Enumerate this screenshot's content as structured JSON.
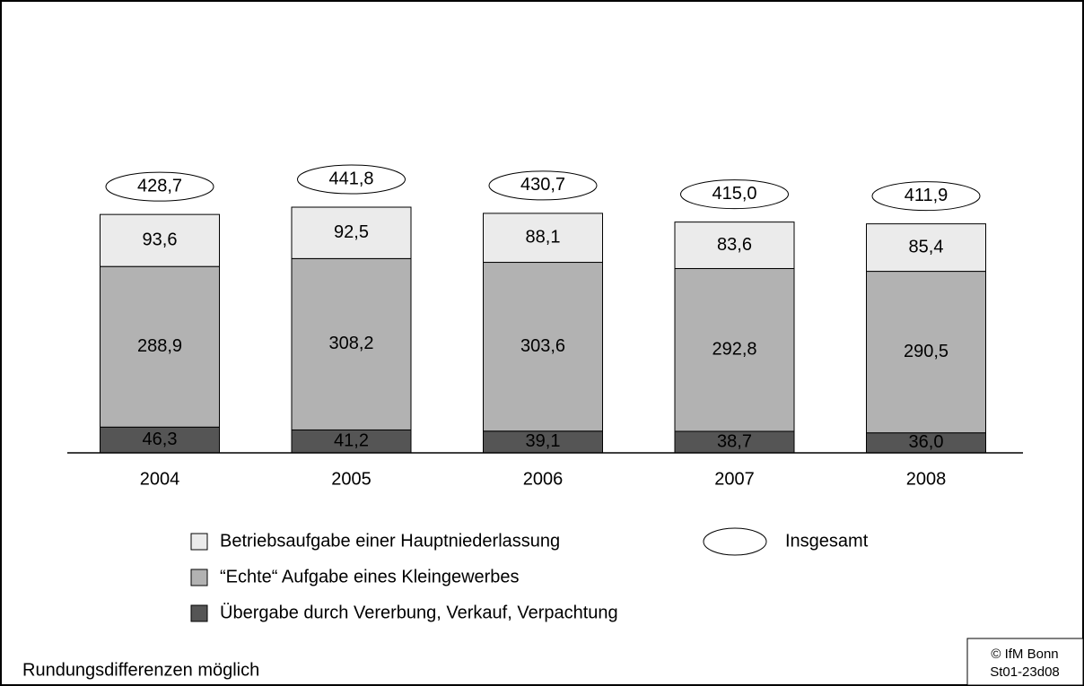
{
  "chart_data": {
    "type": "stacked_bar",
    "categories": [
      "2004",
      "2005",
      "2006",
      "2007",
      "2008"
    ],
    "series": [
      {
        "name": "Übergabe durch Vererbung, Verkauf, Verpachtung",
        "color": "#555555",
        "values": [
          46.3,
          41.2,
          39.1,
          38.7,
          36.0
        ],
        "value_labels": [
          "46,3",
          "41,2",
          "39,1",
          "38,7",
          "36,0"
        ]
      },
      {
        "name": "“Echte“ Aufgabe eines Kleingewerbes",
        "color": "#b2b2b2",
        "values": [
          288.9,
          308.2,
          303.6,
          292.8,
          290.5
        ],
        "value_labels": [
          "288,9",
          "308,2",
          "303,6",
          "292,8",
          "290,5"
        ]
      },
      {
        "name": "Betriebsaufgabe einer Hauptniederlassung",
        "color": "#ebebeb",
        "values": [
          93.6,
          92.5,
          88.1,
          83.6,
          85.4
        ],
        "value_labels": [
          "93,6",
          "92,5",
          "88,1",
          "83,6",
          "85,4"
        ]
      }
    ],
    "totals": {
      "name": "Insgesamt",
      "values": [
        428.7,
        441.8,
        430.7,
        415.0,
        411.9
      ],
      "value_labels": [
        "428,7",
        "441,8",
        "430,7",
        "415,0",
        "411,9"
      ]
    },
    "ylim": [
      0,
      600
    ]
  },
  "footer": {
    "note": "Rundungsdifferenzen möglich",
    "credit": [
      "© IfM Bonn",
      "St01-23d08"
    ]
  }
}
